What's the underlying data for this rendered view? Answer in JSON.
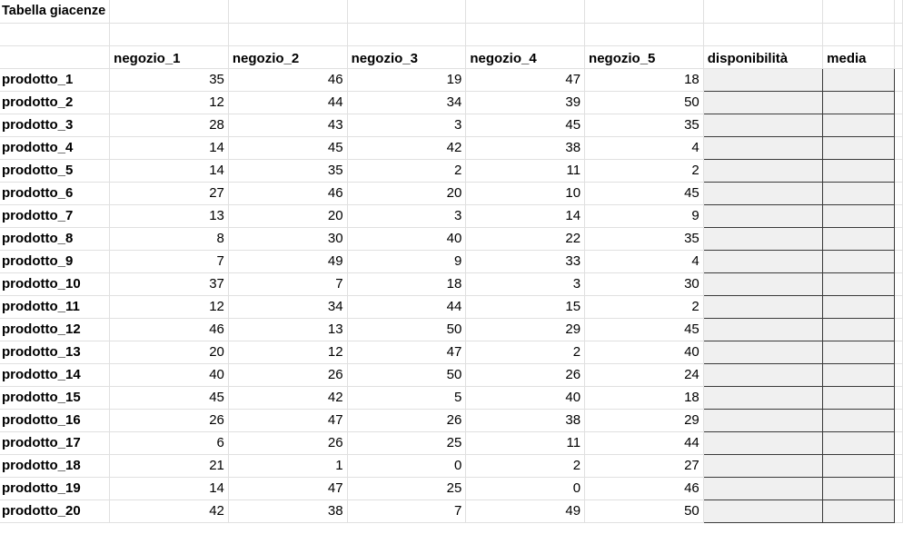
{
  "sheet": {
    "title": "Tabella giacenze",
    "headers": [
      "negozio_1",
      "negozio_2",
      "negozio_3",
      "negozio_4",
      "negozio_5",
      "disponibilità",
      "media"
    ],
    "rows": [
      {
        "label": "prodotto_1",
        "values": [
          35,
          46,
          19,
          47,
          18
        ]
      },
      {
        "label": "prodotto_2",
        "values": [
          12,
          44,
          34,
          39,
          50
        ]
      },
      {
        "label": "prodotto_3",
        "values": [
          28,
          43,
          3,
          45,
          35
        ]
      },
      {
        "label": "prodotto_4",
        "values": [
          14,
          45,
          42,
          38,
          4
        ]
      },
      {
        "label": "prodotto_5",
        "values": [
          14,
          35,
          2,
          11,
          2
        ]
      },
      {
        "label": "prodotto_6",
        "values": [
          27,
          46,
          20,
          10,
          45
        ]
      },
      {
        "label": "prodotto_7",
        "values": [
          13,
          20,
          3,
          14,
          9
        ]
      },
      {
        "label": "prodotto_8",
        "values": [
          8,
          30,
          40,
          22,
          35
        ]
      },
      {
        "label": "prodotto_9",
        "values": [
          7,
          49,
          9,
          33,
          4
        ]
      },
      {
        "label": "prodotto_10",
        "values": [
          37,
          7,
          18,
          3,
          30
        ]
      },
      {
        "label": "prodotto_11",
        "values": [
          12,
          34,
          44,
          15,
          2
        ]
      },
      {
        "label": "prodotto_12",
        "values": [
          46,
          13,
          50,
          29,
          45
        ]
      },
      {
        "label": "prodotto_13",
        "values": [
          20,
          12,
          47,
          2,
          40
        ]
      },
      {
        "label": "prodotto_14",
        "values": [
          40,
          26,
          50,
          26,
          24
        ]
      },
      {
        "label": "prodotto_15",
        "values": [
          45,
          42,
          5,
          40,
          18
        ]
      },
      {
        "label": "prodotto_16",
        "values": [
          26,
          47,
          26,
          38,
          29
        ]
      },
      {
        "label": "prodotto_17",
        "values": [
          6,
          26,
          25,
          11,
          44
        ]
      },
      {
        "label": "prodotto_18",
        "values": [
          21,
          1,
          0,
          2,
          27
        ]
      },
      {
        "label": "prodotto_19",
        "values": [
          14,
          47,
          25,
          0,
          46
        ]
      },
      {
        "label": "prodotto_20",
        "values": [
          42,
          38,
          7,
          49,
          50
        ]
      }
    ]
  }
}
